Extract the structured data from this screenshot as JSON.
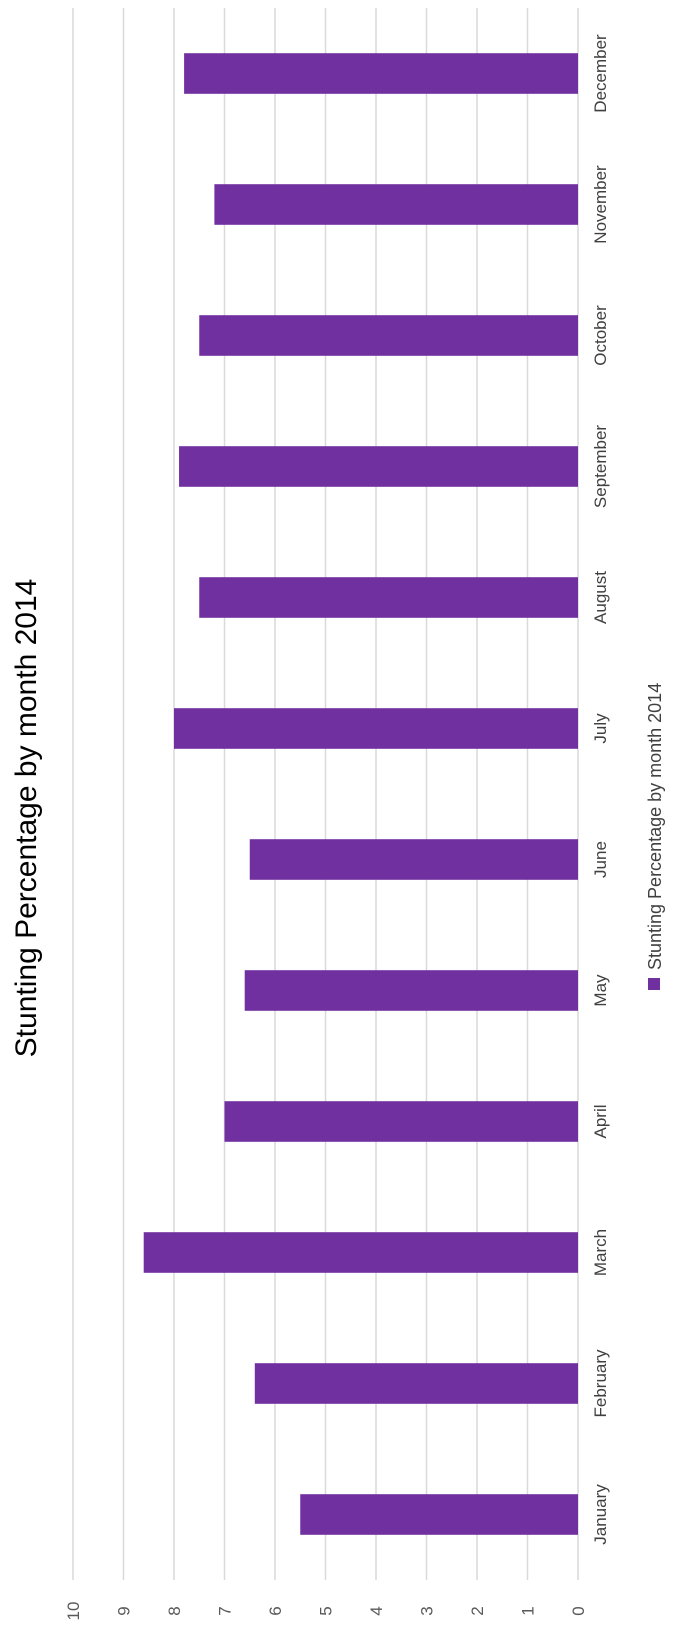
{
  "chart_data": {
    "type": "bar",
    "orientation": "rotated-90-clockwise",
    "title": "Stunting Percentage by month 2014",
    "categories": [
      "January",
      "February",
      "March",
      "April",
      "May",
      "June",
      "July",
      "August",
      "September",
      "October",
      "November",
      "December"
    ],
    "series": [
      {
        "name": "Stunting Percentage by month 2014",
        "values": [
          5.5,
          6.4,
          8.6,
          7.0,
          6.6,
          6.5,
          8.0,
          7.5,
          7.9,
          7.5,
          7.2,
          7.8
        ]
      }
    ],
    "ylim": [
      0,
      10
    ],
    "yticks": [
      0,
      1,
      2,
      3,
      4,
      5,
      6,
      7,
      8,
      9,
      10
    ],
    "grid": true,
    "legend": "bottom",
    "colors": {
      "bar": "#7030a0",
      "grid": "#d9d9d9"
    }
  }
}
